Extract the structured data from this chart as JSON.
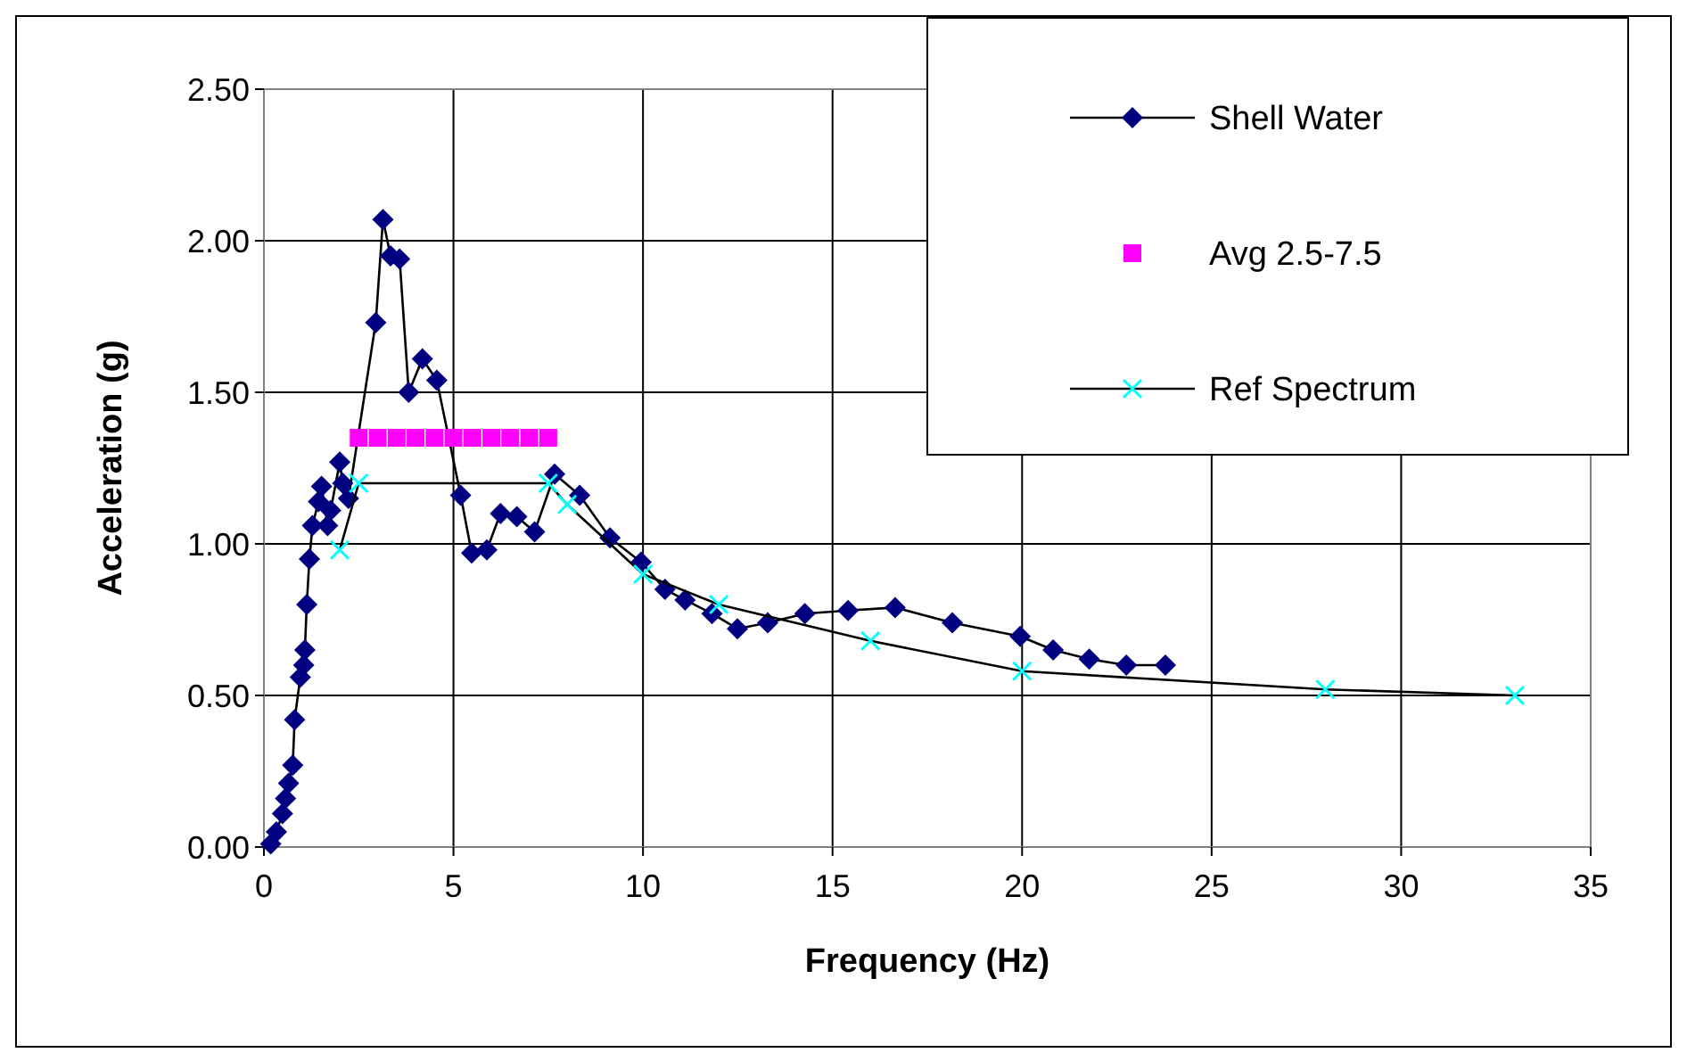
{
  "chart_data": {
    "type": "line",
    "xlabel": "Frequency (Hz)",
    "ylabel": "Acceleration (g)",
    "xlim": [
      0,
      35
    ],
    "xticks": [
      0,
      5,
      10,
      15,
      20,
      25,
      30,
      35
    ],
    "ylim": [
      0,
      2.5
    ],
    "yticks": [
      {
        "value": 0,
        "label": "0.00"
      },
      {
        "value": 0.5,
        "label": "0.50"
      },
      {
        "value": 1,
        "label": "1.00"
      },
      {
        "value": 1.5,
        "label": "1.50"
      },
      {
        "value": 2,
        "label": "2.00"
      },
      {
        "value": 2.5,
        "label": "2.50"
      }
    ],
    "grid": true,
    "legend": "top right",
    "series": [
      {
        "name": "Shell Water",
        "color": "#000080",
        "marker": "diamond",
        "x": [
          0.18,
          0.33,
          0.49,
          0.57,
          0.65,
          0.76,
          0.81,
          0.96,
          1.05,
          1.08,
          1.13,
          1.2,
          1.28,
          1.44,
          1.52,
          1.68,
          1.76,
          2.0,
          2.08,
          2.23,
          2.95,
          3.14,
          3.34,
          3.58,
          3.82,
          4.18,
          4.56,
          5.19,
          5.48,
          5.88,
          6.24,
          6.67,
          7.14,
          7.67,
          8.33,
          9.13,
          9.95,
          10.58,
          11.11,
          11.82,
          12.49,
          13.29,
          14.27,
          15.41,
          16.65,
          18.16,
          19.95,
          20.82,
          21.77,
          22.75,
          23.78
        ],
        "values": [
          0.01,
          0.05,
          0.11,
          0.16,
          0.21,
          0.27,
          0.42,
          0.56,
          0.6,
          0.65,
          0.8,
          0.95,
          1.06,
          1.14,
          1.19,
          1.06,
          1.11,
          1.27,
          1.2,
          1.15,
          1.73,
          2.07,
          1.95,
          1.94,
          1.5,
          1.61,
          1.54,
          1.16,
          0.97,
          0.98,
          1.1,
          1.09,
          1.04,
          1.23,
          1.16,
          1.02,
          0.94,
          0.85,
          0.815,
          0.77,
          0.72,
          0.74,
          0.77,
          0.78,
          0.79,
          0.74,
          0.695,
          0.65,
          0.62,
          0.6,
          0.6
        ]
      },
      {
        "name": "Avg 2.5-7.5",
        "type": "scatter",
        "color": "#ff00ff",
        "marker": "square",
        "x": [
          2.5,
          3.0,
          3.5,
          4.0,
          4.5,
          5.0,
          5.5,
          6.0,
          6.5,
          7.0,
          7.5
        ],
        "values": [
          1.35,
          1.35,
          1.35,
          1.35,
          1.35,
          1.35,
          1.35,
          1.35,
          1.35,
          1.35,
          1.35
        ]
      },
      {
        "name": "Ref Spectrum",
        "color": "#00ffff",
        "marker": "cross",
        "x": [
          2,
          2.5,
          7.5,
          8,
          10,
          12,
          16,
          20,
          28,
          33
        ],
        "values": [
          0.98,
          1.2,
          1.2,
          1.13,
          0.9,
          0.8,
          0.68,
          0.58,
          0.52,
          0.5
        ]
      }
    ]
  }
}
